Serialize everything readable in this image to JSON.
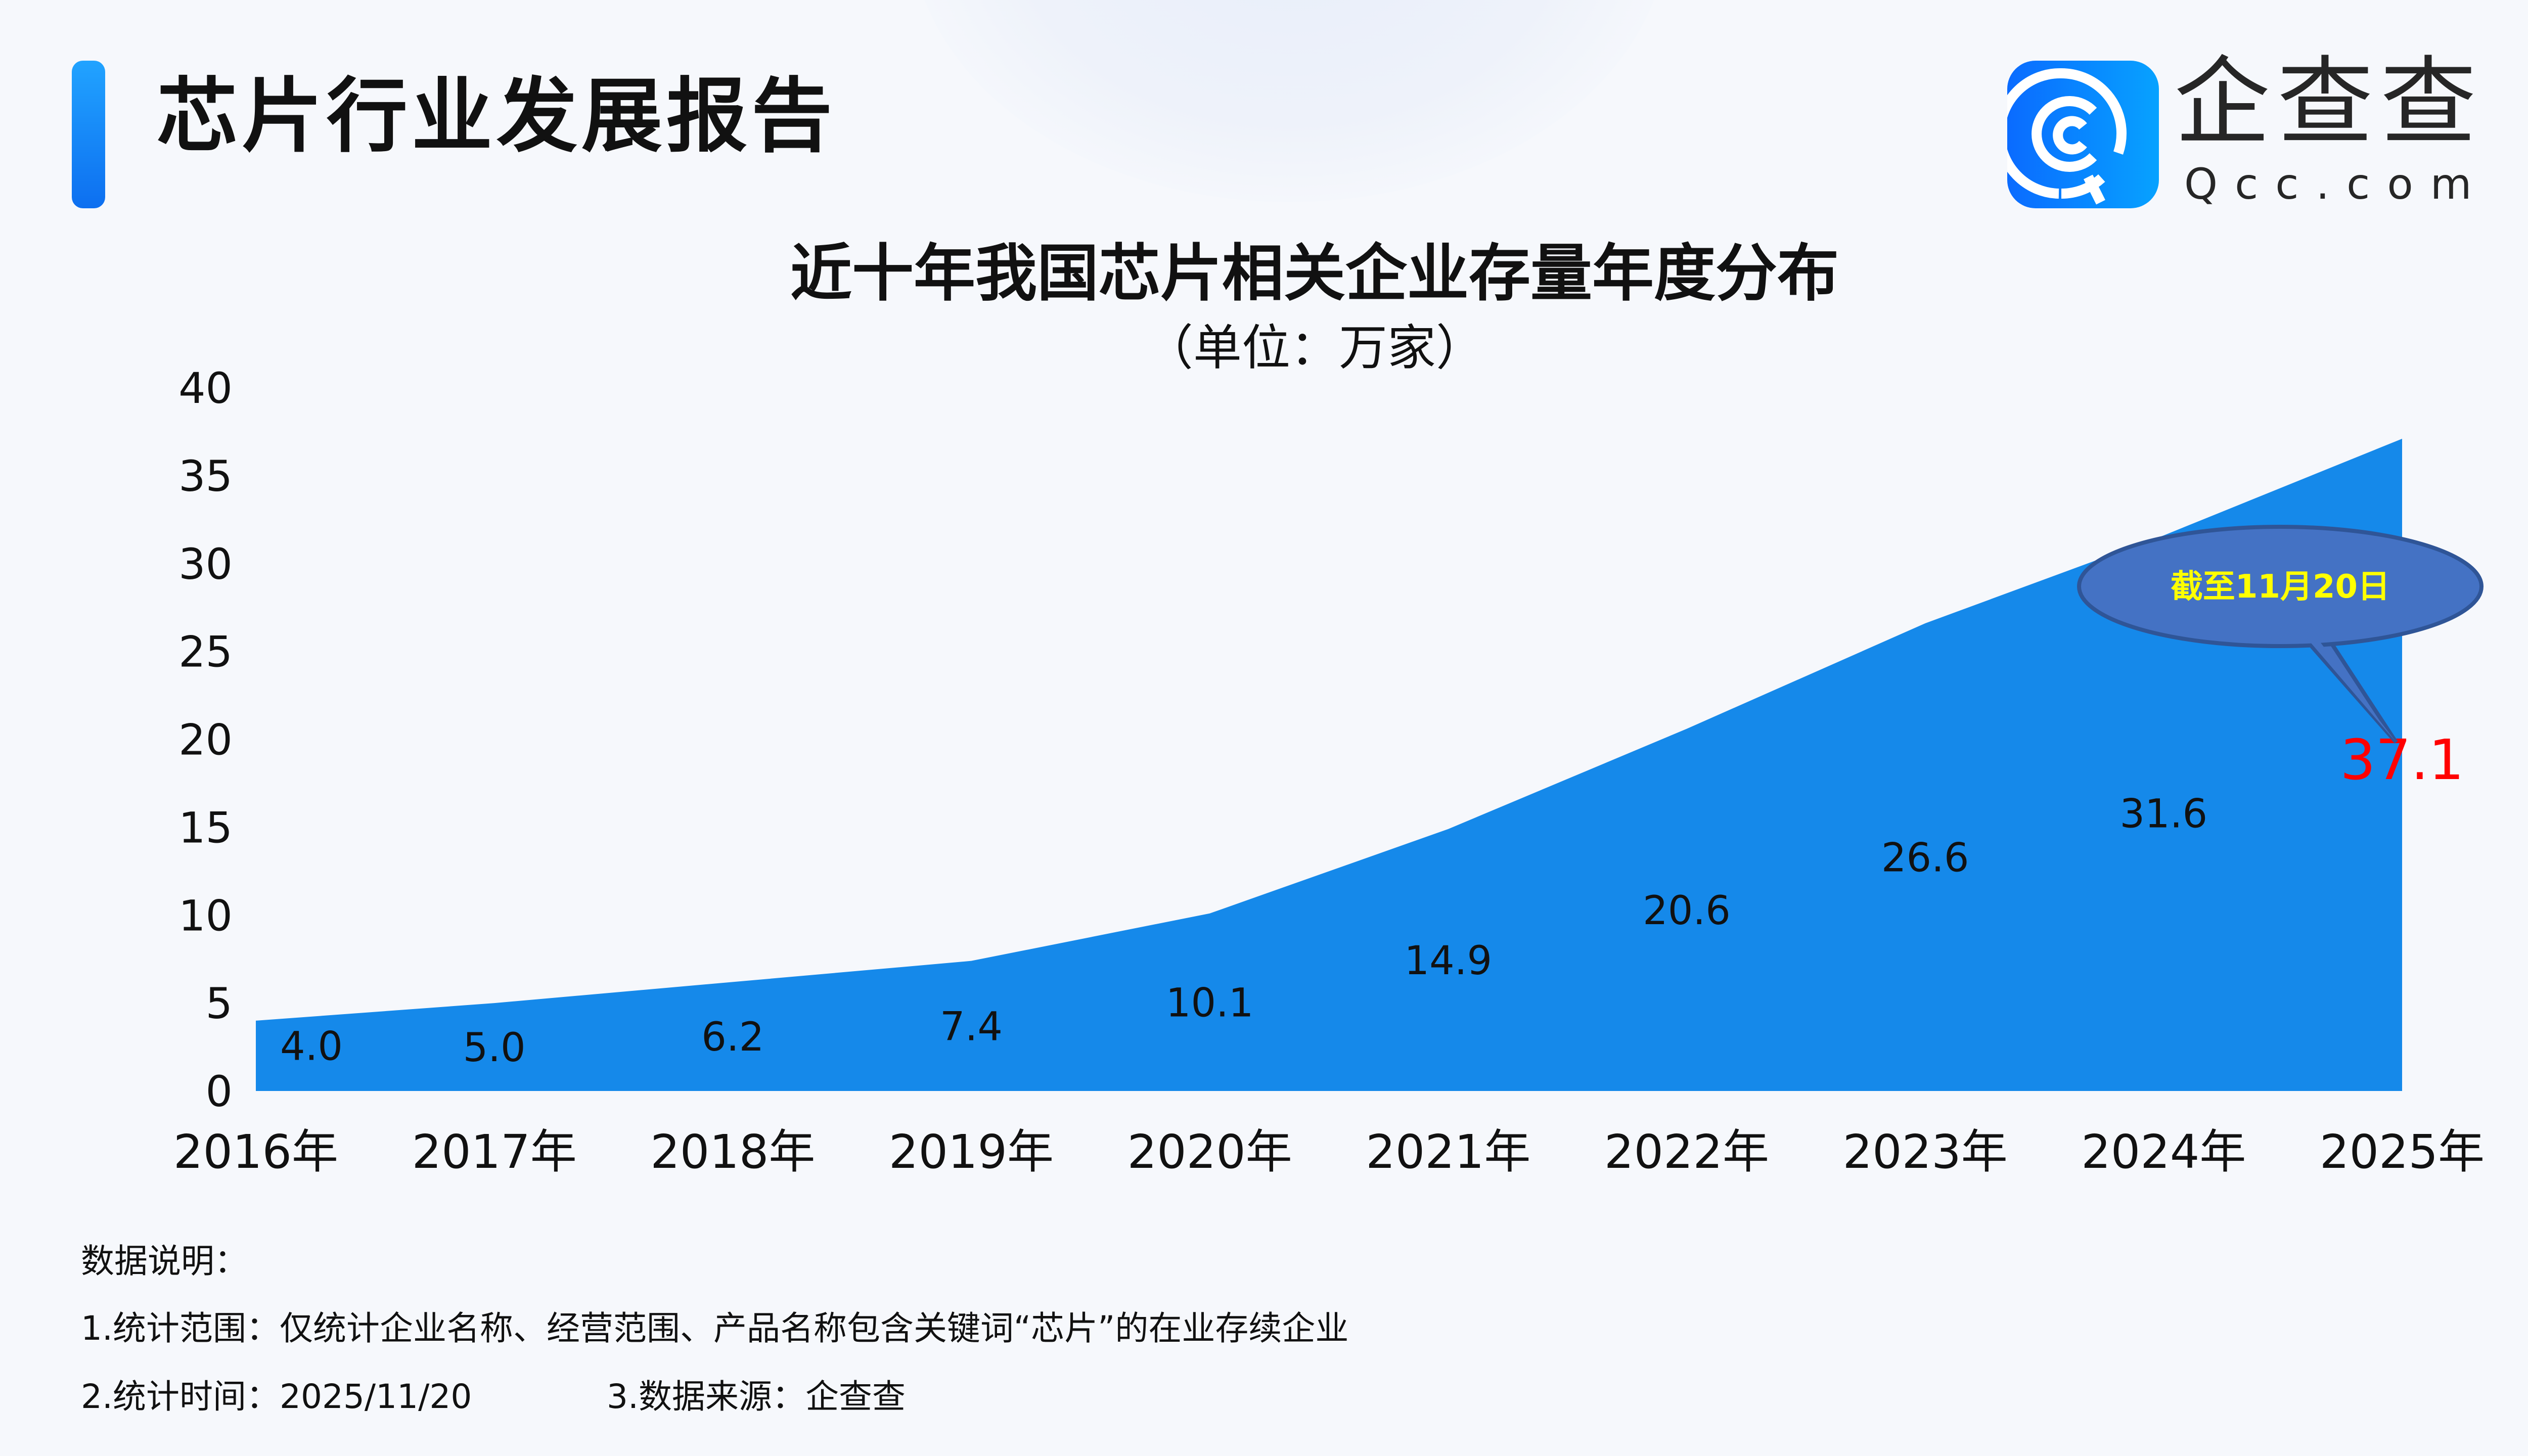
{
  "header": {
    "title": "芯片行业发展报告",
    "logo_cn": "企查查",
    "logo_en": "Qcc.com",
    "accent": "#1a8cf5"
  },
  "chart_data": {
    "type": "area",
    "title": "近十年我国芯片相关企业存量年度分布",
    "subtitle": "（单位：万家）",
    "categories": [
      "2016年",
      "2017年",
      "2018年",
      "2019年",
      "2020年",
      "2021年",
      "2022年",
      "2023年",
      "2024年",
      "2025年"
    ],
    "values": [
      4.0,
      5.0,
      6.2,
      7.4,
      10.1,
      14.9,
      20.6,
      26.6,
      31.6,
      37.1
    ],
    "labels": [
      "4.0",
      "5.0",
      "6.2",
      "7.4",
      "10.1",
      "14.9",
      "20.6",
      "26.6",
      "31.6",
      "37.1"
    ],
    "yticks": [
      "0",
      "5",
      "10",
      "15",
      "20",
      "25",
      "30",
      "35",
      "40"
    ],
    "ylim": [
      0,
      40
    ],
    "grid": false,
    "fill_color": "#1589ea",
    "highlight_color": "#ff0000",
    "callout": {
      "text": "截至11月20日",
      "fill": "#4472c4",
      "text_color": "#ffff00",
      "target": "2025年"
    }
  },
  "notes": {
    "heading": "数据说明：",
    "line1": "1.统计范围：仅统计企业名称、经营范围、产品名称包含关键词“芯片”的在业存续企业",
    "line2a": "2.统计时间：2025/11/20",
    "line2b": "3.数据来源：企查查"
  }
}
